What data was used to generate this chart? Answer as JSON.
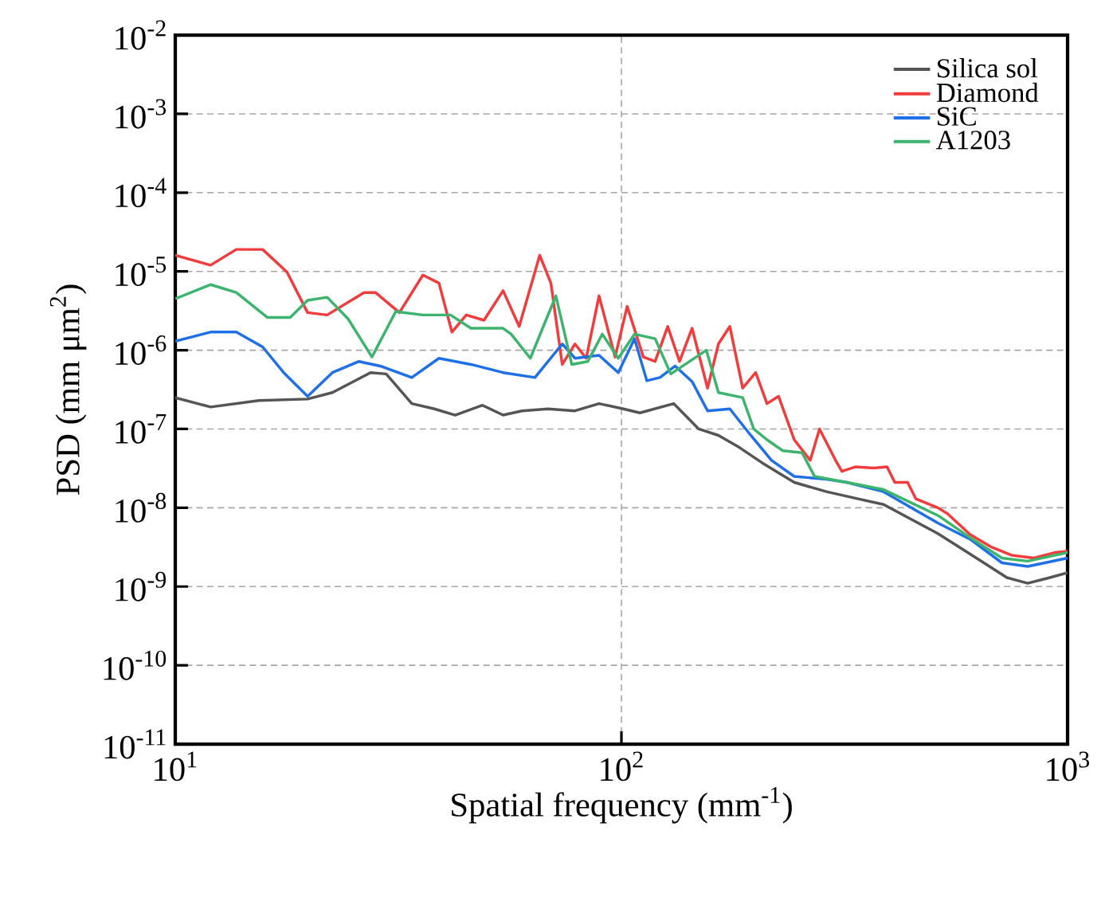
{
  "chart_data": {
    "type": "line",
    "xlabel": "Spatial frequency (mm$^{-1}$)",
    "ylabel": "PSD (mm μm$^{2}$)",
    "log": "xy",
    "grid": true,
    "legend": "top right",
    "xlim": [
      10,
      1000
    ],
    "ylim": [
      1e-11,
      0.01
    ],
    "xticks": [
      {
        "value": 10,
        "label": "10$^{1}$"
      },
      {
        "value": 100,
        "label": "10$^{2}$"
      },
      {
        "value": 1000,
        "label": "10$^{3}$"
      }
    ],
    "yticks": [
      {
        "value": 1e-11,
        "label": "10$^{-11}$"
      },
      {
        "value": 1e-10,
        "label": "10$^{-10}$"
      },
      {
        "value": 1e-09,
        "label": "10$^{-9}$"
      },
      {
        "value": 1e-08,
        "label": "10$^{-8}$"
      },
      {
        "value": 1e-07,
        "label": "10$^{-7}$"
      },
      {
        "value": 1e-06,
        "label": "10$^{-6}$"
      },
      {
        "value": 1e-05,
        "label": "10$^{-5}$"
      },
      {
        "value": 0.0001,
        "label": "10$^{-4}$"
      },
      {
        "value": 0.001,
        "label": "10$^{-3}$"
      },
      {
        "value": 0.01,
        "label": "10$^{-2}$"
      }
    ],
    "series": [
      {
        "name": "Silica sol",
        "color": "#555555",
        "x": [
          10.0,
          12.0,
          15.4,
          19.8,
          22.5,
          27.4,
          29.7,
          33.9,
          38.1,
          42.4,
          48.8,
          54.3,
          59.9,
          68.4,
          78.7,
          89.1,
          101.0,
          110.0,
          131.0,
          149.0,
          165.0,
          184.0,
          207.0,
          244.0,
          288.0,
          339.0,
          387.0,
          512.0,
          604.0,
          731.0,
          814.0,
          913.0,
          1000.0
        ],
        "values": [
          2.5e-07,
          1.9e-07,
          2.3e-07,
          2.4e-07,
          2.9e-07,
          5.2e-07,
          5e-07,
          2.1e-07,
          1.8e-07,
          1.5e-07,
          2e-07,
          1.5e-07,
          1.7e-07,
          1.8e-07,
          1.7e-07,
          2.1e-07,
          1.8e-07,
          1.6e-07,
          2.1e-07,
          1e-07,
          8.3e-08,
          5.8e-08,
          3.7e-08,
          2.1e-08,
          1.6e-08,
          1.3e-08,
          1.1e-08,
          4.7e-09,
          2.6e-09,
          1.3e-09,
          1.1e-09,
          1.3e-09,
          1.5e-09
        ]
      },
      {
        "name": "Diamond",
        "color": "#f03c3c",
        "x": [
          10,
          12,
          13.7,
          15.7,
          17.8,
          19.8,
          21.9,
          26.5,
          28.1,
          31.8,
          35.9,
          39,
          41.7,
          44.9,
          49.2,
          54.3,
          59,
          65.6,
          69.5,
          73.7,
          78.7,
          83.4,
          89.1,
          96.8,
          103,
          112,
          119,
          127,
          135,
          144,
          156,
          165,
          175,
          187,
          200,
          212,
          225,
          244,
          265,
          278,
          302,
          312,
          334,
          368,
          394,
          410,
          438,
          457,
          512,
          538,
          604,
          673,
          749,
          841,
          936,
          1000
        ],
        "values": [
          1.6e-05,
          1.2e-05,
          1.9e-05,
          1.9e-05,
          9.8e-06,
          3e-06,
          2.8e-06,
          5.4e-06,
          5.4e-06,
          3e-06,
          9e-06,
          7.1e-06,
          1.7e-06,
          2.8e-06,
          2.4e-06,
          5.7e-06,
          2e-06,
          1.6e-05,
          7.1e-06,
          6.6e-07,
          1.2e-06,
          7.9e-07,
          4.9e-06,
          8.2e-07,
          3.6e-06,
          8.2e-07,
          7.2e-07,
          2e-06,
          7.2e-07,
          1.9e-06,
          3.3e-07,
          1.2e-06,
          2e-06,
          3.3e-07,
          5.2e-07,
          2.1e-07,
          2.6e-07,
          7.3e-08,
          4e-08,
          1e-07,
          4e-08,
          2.9e-08,
          3.3e-08,
          3.2e-08,
          3.3e-08,
          2.1e-08,
          2.1e-08,
          1.3e-08,
          1e-08,
          8.4e-09,
          4.6e-09,
          3.2e-09,
          2.5e-09,
          2.3e-09,
          2.7e-09,
          2.8e-09
        ]
      },
      {
        "name": "SiC",
        "color": "#1f6fe6",
        "x": [
          10.0,
          12.0,
          13.7,
          15.7,
          17.5,
          19.8,
          22.5,
          25.8,
          28.8,
          33.9,
          39.0,
          46.0,
          54.3,
          64.0,
          73.7,
          78.7,
          89.1,
          98.4,
          107.0,
          114.0,
          122.0,
          132.0,
          144.0,
          156.0,
          175.0,
          195.0,
          217.0,
          244.0,
          288.0,
          320.0,
          387.0,
          512.0,
          604.0,
          713.0,
          814.0,
          1000.0
        ],
        "values": [
          1.3e-06,
          1.7e-06,
          1.7e-06,
          1.1e-06,
          5.2e-07,
          2.6e-07,
          5.2e-07,
          7.2e-07,
          6.3e-07,
          4.5e-07,
          7.9e-07,
          6.6e-07,
          5.2e-07,
          4.5e-07,
          1.2e-06,
          7.9e-07,
          8.6e-07,
          5.2e-07,
          1.4e-06,
          4.1e-07,
          4.5e-07,
          6.3e-07,
          4e-07,
          1.7e-07,
          1.8e-07,
          8.3e-08,
          4e-08,
          2.5e-08,
          2.3e-08,
          2.1e-08,
          1.6e-08,
          6.4e-09,
          4e-09,
          2e-09,
          1.8e-09,
          2.3e-09
        ]
      },
      {
        "name": "A1203",
        "color": "#3cb46e",
        "x": [
          10.0,
          12.0,
          13.7,
          16.1,
          18.1,
          19.8,
          21.9,
          24.4,
          27.6,
          31.2,
          35.9,
          41.4,
          46.0,
          54.3,
          56.6,
          62.5,
          71.3,
          77.4,
          84.1,
          90.6,
          98.4,
          107.0,
          119.0,
          129.0,
          155.0,
          165.0,
          187.0,
          198.0,
          212.0,
          230.0,
          254.0,
          271.0,
          320.0,
          387.0,
          512.0,
          604.0,
          713.0,
          814.0,
          1000.0
        ],
        "values": [
          4.5e-06,
          6.8e-06,
          5.4e-06,
          2.6e-06,
          2.6e-06,
          4.3e-06,
          4.7e-06,
          2.5e-06,
          8.2e-07,
          3.1e-06,
          2.8e-06,
          2.8e-06,
          1.9e-06,
          1.9e-06,
          1.6e-06,
          7.9e-07,
          4.9e-06,
          6.6e-07,
          7.2e-07,
          1.6e-06,
          7.9e-07,
          1.6e-06,
          1.4e-06,
          5e-07,
          1e-06,
          2.9e-07,
          2.5e-07,
          1e-07,
          7.3e-08,
          5.3e-08,
          5e-08,
          2.5e-08,
          2.1e-08,
          1.7e-08,
          8e-09,
          4.2e-09,
          2.3e-09,
          2.1e-09,
          2.7e-09
        ]
      }
    ]
  }
}
